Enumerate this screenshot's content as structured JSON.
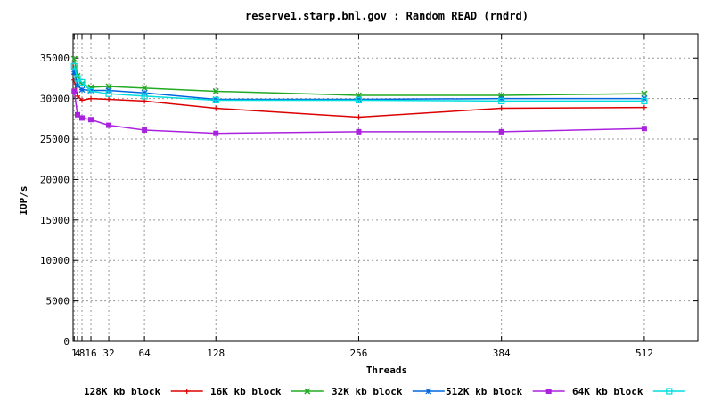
{
  "chart_data": {
    "type": "line",
    "title": "reserve1.starp.bnl.gov : Random READ (rndrd)",
    "xlabel": "Threads",
    "ylabel": "IOP/s",
    "x": [
      1,
      4,
      8,
      16,
      32,
      64,
      128,
      256,
      384,
      512
    ],
    "xticks": [
      1,
      4,
      8,
      16,
      32,
      64,
      128,
      256,
      384,
      512
    ],
    "xtick_labels": [
      "1",
      "4",
      "8",
      "16",
      "32",
      "64",
      "128",
      "256",
      "384",
      "512"
    ],
    "xlim": [
      0,
      560
    ],
    "ylim": [
      0,
      38000
    ],
    "yticks": [
      0,
      5000,
      10000,
      15000,
      20000,
      25000,
      30000,
      35000
    ],
    "grid": true,
    "legend_position": "bottom",
    "series": [
      {
        "name": "128K kb block",
        "color": "#dd0000",
        "marker": "plus",
        "values": [
          32300,
          30300,
          29800,
          30000,
          29900,
          29700,
          28800,
          27700,
          28800,
          28900
        ]
      },
      {
        "name": "16K kb block",
        "color": "#22aa22",
        "marker": "cross",
        "values": [
          34900,
          32800,
          31800,
          31400,
          31500,
          31300,
          30900,
          30400,
          30400,
          30600
        ]
      },
      {
        "name": "32K kb block",
        "color": "#0066dd",
        "marker": "asterisk",
        "values": [
          33300,
          31600,
          31100,
          31000,
          31000,
          30700,
          29900,
          29900,
          30000,
          30000
        ]
      },
      {
        "name": "512K kb block",
        "color": "#aa22dd",
        "marker": "square",
        "values": [
          30900,
          28000,
          27600,
          27400,
          26700,
          26100,
          25700,
          25900,
          25900,
          26300
        ]
      },
      {
        "name": "64K kb block",
        "color": "#00dddd",
        "marker": "square-open",
        "values": [
          34000,
          32500,
          32000,
          30900,
          30600,
          30300,
          29800,
          29800,
          29700,
          29700
        ]
      }
    ]
  }
}
